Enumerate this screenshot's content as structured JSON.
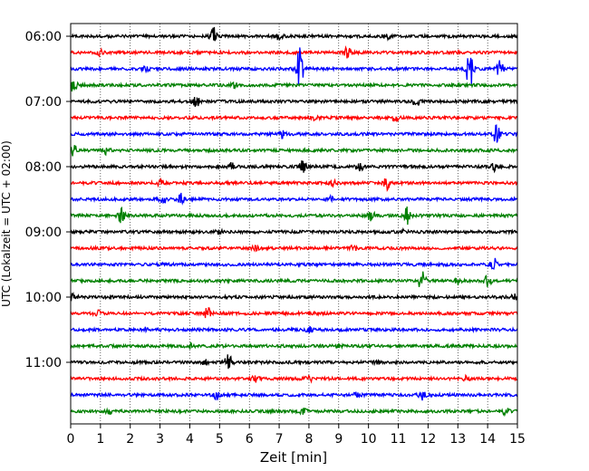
{
  "chart_data": {
    "type": "line",
    "title": "",
    "xlabel": "Zeit  [min]",
    "ylabel": "UTC (Lokalzeit = UTC + 02:00)",
    "xlim": [
      0,
      15
    ],
    "x_ticks": [
      "0",
      "1",
      "2",
      "3",
      "4",
      "5",
      "6",
      "7",
      "8",
      "9",
      "10",
      "11",
      "12",
      "13",
      "14",
      "15"
    ],
    "y_ticks": [
      "06:00",
      "07:00",
      "08:00",
      "09:00",
      "10:00",
      "11:00"
    ],
    "grid": "vertical-dotted",
    "trace_interval_min": 15,
    "trace_colors": [
      "#000000",
      "#ff0000",
      "#0000ff",
      "#008000"
    ],
    "series": [
      {
        "start": "06:00",
        "color": "#000000",
        "events": [
          [
            4.8,
            1.0
          ],
          [
            7.0,
            0.4
          ],
          [
            10.6,
            0.3
          ]
        ]
      },
      {
        "start": "06:15",
        "color": "#ff0000",
        "events": [
          [
            1.0,
            0.3
          ],
          [
            9.3,
            0.7
          ]
        ]
      },
      {
        "start": "06:30",
        "color": "#0000ff",
        "events": [
          [
            7.7,
            3.2
          ],
          [
            13.4,
            2.6
          ],
          [
            14.4,
            1.0
          ],
          [
            2.5,
            0.3
          ]
        ]
      },
      {
        "start": "06:45",
        "color": "#008000",
        "events": [
          [
            0.1,
            0.8
          ],
          [
            5.5,
            0.3
          ]
        ]
      },
      {
        "start": "07:00",
        "color": "#000000",
        "events": [
          [
            4.2,
            0.9
          ],
          [
            11.6,
            0.6
          ]
        ]
      },
      {
        "start": "07:15",
        "color": "#ff0000",
        "events": [
          [
            10.9,
            0.4
          ],
          [
            8.2,
            0.2
          ]
        ]
      },
      {
        "start": "07:30",
        "color": "#0000ff",
        "events": [
          [
            7.1,
            0.6
          ],
          [
            14.3,
            1.2
          ]
        ]
      },
      {
        "start": "07:45",
        "color": "#008000",
        "events": [
          [
            0.1,
            0.7
          ],
          [
            1.2,
            0.4
          ]
        ]
      },
      {
        "start": "08:00",
        "color": "#000000",
        "events": [
          [
            5.4,
            0.5
          ],
          [
            7.8,
            0.7
          ],
          [
            9.7,
            0.6
          ],
          [
            14.2,
            0.5
          ]
        ]
      },
      {
        "start": "08:15",
        "color": "#ff0000",
        "events": [
          [
            3.0,
            0.3
          ],
          [
            10.6,
            0.8
          ],
          [
            8.8,
            0.3
          ]
        ]
      },
      {
        "start": "08:30",
        "color": "#0000ff",
        "events": [
          [
            3.1,
            0.5
          ],
          [
            3.7,
            0.7
          ],
          [
            8.7,
            0.3
          ]
        ]
      },
      {
        "start": "08:45",
        "color": "#008000",
        "events": [
          [
            1.7,
            0.9
          ],
          [
            10.1,
            0.8
          ],
          [
            11.3,
            1.0
          ]
        ]
      },
      {
        "start": "09:00",
        "color": "#000000",
        "events": [
          [
            5.0,
            0.3
          ],
          [
            11.1,
            0.3
          ]
        ]
      },
      {
        "start": "09:15",
        "color": "#ff0000",
        "events": [
          [
            9.5,
            0.3
          ],
          [
            6.2,
            0.2
          ]
        ]
      },
      {
        "start": "09:30",
        "color": "#0000ff",
        "events": [
          [
            14.2,
            0.8
          ],
          [
            3.0,
            0.2
          ]
        ]
      },
      {
        "start": "09:45",
        "color": "#008000",
        "events": [
          [
            11.8,
            1.4
          ],
          [
            14.0,
            0.8
          ],
          [
            13.0,
            0.4
          ]
        ]
      },
      {
        "start": "10:00",
        "color": "#000000",
        "events": [
          [
            0.1,
            0.3
          ],
          [
            14.9,
            0.3
          ]
        ]
      },
      {
        "start": "10:15",
        "color": "#ff0000",
        "events": [
          [
            4.6,
            0.7
          ],
          [
            0.9,
            0.3
          ]
        ]
      },
      {
        "start": "10:30",
        "color": "#0000ff",
        "events": [
          [
            8.0,
            0.3
          ],
          [
            2.5,
            0.2
          ]
        ]
      },
      {
        "start": "10:45",
        "color": "#008000",
        "events": [
          [
            4.0,
            0.3
          ],
          [
            9.0,
            0.2
          ]
        ]
      },
      {
        "start": "11:00",
        "color": "#000000",
        "events": [
          [
            5.3,
            1.0
          ],
          [
            4.5,
            0.3
          ],
          [
            10.3,
            0.2
          ]
        ]
      },
      {
        "start": "11:15",
        "color": "#ff0000",
        "events": [
          [
            6.2,
            0.4
          ],
          [
            8.0,
            0.6
          ],
          [
            13.3,
            0.3
          ]
        ]
      },
      {
        "start": "11:30",
        "color": "#0000ff",
        "events": [
          [
            4.9,
            0.5
          ],
          [
            11.8,
            0.6
          ],
          [
            9.6,
            0.3
          ]
        ]
      },
      {
        "start": "11:45",
        "color": "#008000",
        "events": [
          [
            1.3,
            0.4
          ],
          [
            7.8,
            0.3
          ],
          [
            14.6,
            0.4
          ]
        ]
      }
    ]
  }
}
